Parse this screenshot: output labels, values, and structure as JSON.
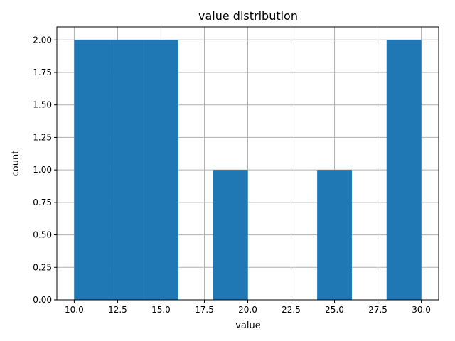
{
  "chart_data": {
    "type": "histogram",
    "title": "value distribution",
    "xlabel": "value",
    "ylabel": "count",
    "bins": [
      {
        "x0": 10,
        "x1": 12,
        "count": 2
      },
      {
        "x0": 12,
        "x1": 14,
        "count": 2
      },
      {
        "x0": 14,
        "x1": 16,
        "count": 2
      },
      {
        "x0": 16,
        "x1": 18,
        "count": 0
      },
      {
        "x0": 18,
        "x1": 20,
        "count": 1
      },
      {
        "x0": 20,
        "x1": 22,
        "count": 0
      },
      {
        "x0": 22,
        "x1": 24,
        "count": 0
      },
      {
        "x0": 24,
        "x1": 26,
        "count": 1
      },
      {
        "x0": 26,
        "x1": 28,
        "count": 0
      },
      {
        "x0": 28,
        "x1": 30,
        "count": 2
      }
    ],
    "xlim": [
      9,
      31
    ],
    "ylim": [
      0,
      2.1
    ],
    "xticks": [
      10,
      12.5,
      15,
      17.5,
      20,
      22.5,
      25,
      27.5,
      30
    ],
    "xtick_labels": [
      "10.0",
      "12.5",
      "15.0",
      "17.5",
      "20.0",
      "22.5",
      "25.0",
      "27.5",
      "30.0"
    ],
    "yticks": [
      0,
      0.25,
      0.5,
      0.75,
      1.0,
      1.25,
      1.5,
      1.75,
      2.0
    ],
    "ytick_labels": [
      "0.00",
      "0.25",
      "0.50",
      "0.75",
      "1.00",
      "1.25",
      "1.50",
      "1.75",
      "2.00"
    ],
    "grid": true,
    "colors": {
      "bar": "#1f77b4",
      "grid": "#b0b0b0",
      "axis": "#000000"
    }
  }
}
